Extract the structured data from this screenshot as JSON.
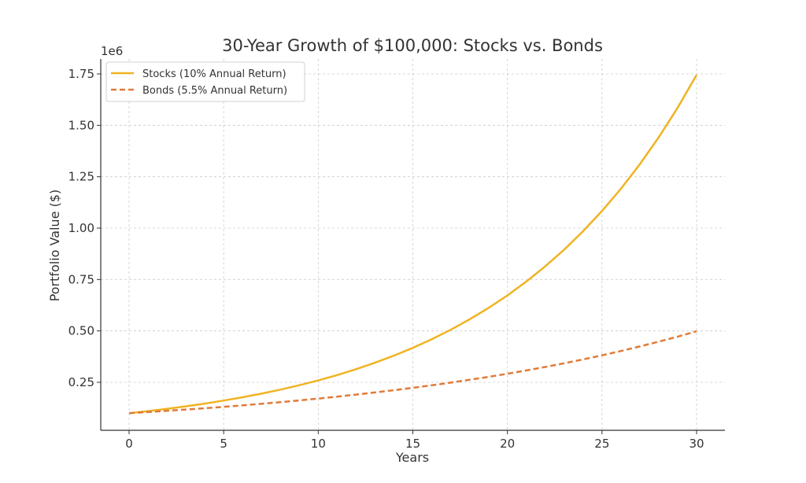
{
  "chart_data": {
    "type": "line",
    "title": "30-Year Growth of $100,000: Stocks vs. Bonds",
    "xlabel": "Years",
    "ylabel": "Portfolio Value ($)",
    "y_offset_label": "1e6",
    "xlim": [
      -1.5,
      31.5
    ],
    "ylim": [
      0.0,
      1.825
    ],
    "x_ticks": [
      0,
      5,
      10,
      15,
      20,
      25,
      30
    ],
    "y_ticks": [
      0.25,
      0.5,
      0.75,
      1.0,
      1.25,
      1.5,
      1.75
    ],
    "y_tick_labels": [
      "0.25",
      "0.50",
      "0.75",
      "1.00",
      "1.25",
      "1.50",
      "1.75"
    ],
    "grid": true,
    "legend_position": "upper left",
    "x": [
      0,
      1,
      2,
      3,
      4,
      5,
      6,
      7,
      8,
      9,
      10,
      11,
      12,
      13,
      14,
      15,
      16,
      17,
      18,
      19,
      20,
      21,
      22,
      23,
      24,
      25,
      26,
      27,
      28,
      29,
      30
    ],
    "series": [
      {
        "name": "Stocks (10% Annual Return)",
        "color": "#f0b323",
        "style": "solid",
        "values": [
          100000,
          110000,
          121000,
          133100,
          146410,
          161051,
          177156,
          194872,
          214359,
          235795,
          259374,
          285312,
          313843,
          345227,
          379750,
          417725,
          459497,
          505447,
          555992,
          611591,
          672750,
          740025,
          814027,
          895430,
          984973,
          1083471,
          1191818,
          1310999,
          1442099,
          1586309,
          1744940
        ]
      },
      {
        "name": "Bonds (5.5% Annual Return)",
        "color": "#e07b39",
        "style": "dashed",
        "values": [
          100000,
          105500,
          111303,
          117424,
          123882,
          130696,
          137884,
          145468,
          153469,
          161909,
          170814,
          180209,
          190121,
          200577,
          211609,
          223248,
          235526,
          248480,
          262147,
          276565,
          291775,
          307823,
          324753,
          342615,
          361458,
          381339,
          402312,
          424440,
          447784,
          472412,
          498395
        ]
      }
    ]
  }
}
